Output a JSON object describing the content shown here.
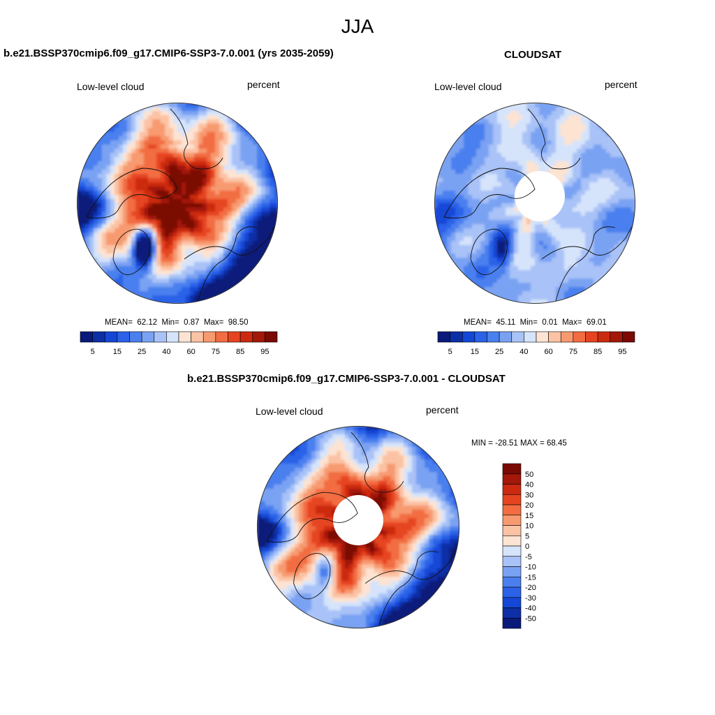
{
  "figure": {
    "season": "JJA",
    "panels": [
      {
        "title": "b.e21.BSSP370cmip6.f09_g17.CMIP6-SSP3-7.0.001 (yrs 2035-2059)",
        "left_label": "Low-level cloud",
        "right_label": "percent",
        "stats": {
          "mean_label": "MEAN=",
          "mean": "62.12",
          "min_label": "Min=",
          "min": "0.87",
          "max_label": "Max=",
          "max": "98.50"
        }
      },
      {
        "title": "CLOUDSAT",
        "left_label": "Low-level cloud",
        "right_label": "percent",
        "stats": {
          "mean_label": "MEAN=",
          "mean": "45.11",
          "min_label": "Min=",
          "min": "0.01",
          "max_label": "Max=",
          "max": "69.01"
        }
      },
      {
        "title": "b.e21.BSSP370cmip6.f09_g17.CMIP6-SSP3-7.0.001 - CLOUDSAT",
        "left_label": "Low-level cloud",
        "right_label": "percent",
        "stats_text": "MIN = -28.51 MAX =  68.45"
      }
    ]
  },
  "chart_data": [
    {
      "type": "heatmap",
      "projection": "north-polar-stereographic",
      "title": "b.e21.BSSP370cmip6.f09_g17.CMIP6-SSP3-7.0.001 (yrs 2035-2059)",
      "variable": "Low-level cloud",
      "units": "percent",
      "mean": 62.12,
      "min": 0.87,
      "max": 98.5,
      "colorbar": {
        "orientation": "horizontal",
        "levels": [
          5,
          10,
          15,
          20,
          25,
          30,
          40,
          50,
          60,
          70,
          75,
          80,
          85,
          90,
          95
        ],
        "tick_labels": [
          "5",
          "15",
          "25",
          "40",
          "60",
          "75",
          "85",
          "95"
        ]
      }
    },
    {
      "type": "heatmap",
      "projection": "north-polar-stereographic",
      "title": "CLOUDSAT",
      "variable": "Low-level cloud",
      "units": "percent",
      "mean": 45.11,
      "min": 0.01,
      "max": 69.01,
      "missing_region": "polar cap",
      "colorbar": {
        "orientation": "horizontal",
        "levels": [
          5,
          10,
          15,
          20,
          25,
          30,
          40,
          50,
          60,
          70,
          75,
          80,
          85,
          90,
          95
        ],
        "tick_labels": [
          "5",
          "15",
          "25",
          "40",
          "60",
          "75",
          "85",
          "95"
        ]
      }
    },
    {
      "type": "heatmap",
      "projection": "north-polar-stereographic",
      "title": "b.e21.BSSP370cmip6.f09_g17.CMIP6-SSP3-7.0.001 - CLOUDSAT",
      "variable": "Low-level cloud",
      "units": "percent",
      "min": -28.51,
      "max": 68.45,
      "missing_region": "polar cap",
      "colorbar": {
        "orientation": "vertical",
        "levels": [
          -50,
          -40,
          -30,
          -20,
          -15,
          -10,
          -5,
          0,
          5,
          10,
          15,
          20,
          30,
          40,
          50
        ],
        "tick_labels": [
          "50",
          "40",
          "30",
          "20",
          "15",
          "10",
          "5",
          "0",
          "-5",
          "-10",
          "-15",
          "-20",
          "-30",
          "-40",
          "-50"
        ]
      }
    }
  ],
  "palette": [
    "#0a1a7a",
    "#0d2fa6",
    "#1447d6",
    "#2b62e8",
    "#4a7fee",
    "#7aa2f3",
    "#a9c2f7",
    "#d6e4fb",
    "#fde3d2",
    "#fbc2a4",
    "#f79a70",
    "#f26d42",
    "#e64420",
    "#cc2a10",
    "#a31808",
    "#7a0a03"
  ]
}
